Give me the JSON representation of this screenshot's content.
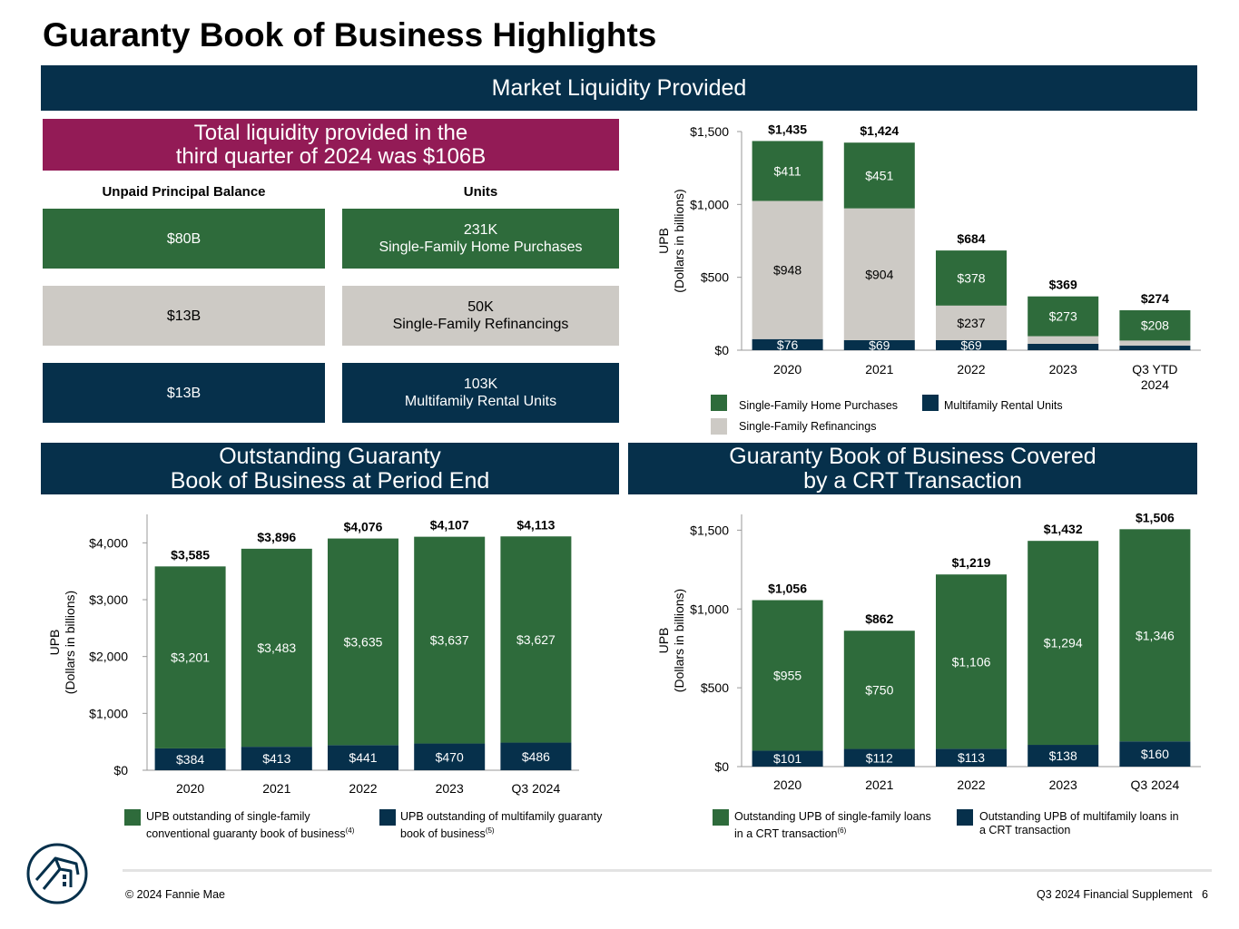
{
  "title": "Guaranty Book of Business Highlights",
  "liquidity_banner": "Market Liquidity Provided",
  "total_liquidity": {
    "line1": "Total liquidity provided in the",
    "line2": "third quarter of 2024 was $106B"
  },
  "columns": {
    "upb": "Unpaid Principal Balance",
    "units": "Units"
  },
  "tiles": [
    {
      "upb": "$80B",
      "units_value": "231K",
      "units_label": "Single-Family Home Purchases"
    },
    {
      "upb": "$13B",
      "units_value": "50K",
      "units_label": "Single-Family Refinancings"
    },
    {
      "upb": "$13B",
      "units_value": "103K",
      "units_label": "Multifamily Rental Units"
    }
  ],
  "outstanding_banner": {
    "line1": "Outstanding Guaranty",
    "line2": "Book of Business at Period End"
  },
  "crt_banner": {
    "line1": "Guaranty Book of Business Covered",
    "line2": "by a CRT Transaction"
  },
  "colors": {
    "navy": "#06304b",
    "green": "#2e6b3b",
    "gray": "#cdcac5",
    "magenta": "#931b56"
  },
  "logo_icon": "fannie-mae-house-logo",
  "footer": {
    "copyright": "© 2024 Fannie Mae",
    "supplement": "Q3 2024 Financial Supplement",
    "page": "6"
  },
  "legends": {
    "liquidity": [
      {
        "name": "Single-Family Home Purchases",
        "color": "#2e6b3b"
      },
      {
        "name": "Multifamily Rental Units",
        "color": "#06304b"
      },
      {
        "name": "Single-Family Refinancings",
        "color": "#cdcac5"
      }
    ],
    "outstanding": [
      {
        "line1": "UPB outstanding of single-family",
        "line2": "conventional guaranty book of business",
        "note": "(4)",
        "color": "#2e6b3b"
      },
      {
        "line1": "UPB outstanding of multifamily guaranty",
        "line2": "book of business",
        "note": "(5)",
        "color": "#06304b"
      }
    ],
    "crt": [
      {
        "line1": "Outstanding UPB of single-family loans",
        "line2": "in a CRT transaction",
        "note": "(6)",
        "color": "#2e6b3b"
      },
      {
        "line1": "Outstanding UPB of multifamily loans in",
        "line2": "a CRT transaction",
        "note": "",
        "color": "#06304b"
      }
    ]
  },
  "chart_data": [
    {
      "id": "liquidity",
      "type": "bar",
      "stacked": true,
      "ylabel": "UPB",
      "ylabel2": "(Dollars in billions)",
      "ylim": [
        0,
        1500
      ],
      "yticks": [
        0,
        500,
        1000,
        1500
      ],
      "ytick_labels": [
        "$0",
        "$500",
        "$1,000",
        "$1,500"
      ],
      "categories": [
        [
          "2020"
        ],
        [
          "2021"
        ],
        [
          "2022"
        ],
        [
          "2023"
        ],
        [
          "Q3 YTD",
          "2024"
        ]
      ],
      "series": [
        {
          "name": "Multifamily Rental Units",
          "values": [
            76,
            69,
            69,
            44,
            31
          ],
          "labels": [
            "$76",
            "$69",
            "$69",
            "",
            ""
          ],
          "color": "#06304b",
          "label_color": "#ffffff"
        },
        {
          "name": "Single-Family Refinancings",
          "values": [
            948,
            904,
            237,
            52,
            35
          ],
          "labels": [
            "$948",
            "$904",
            "$237",
            "",
            ""
          ],
          "color": "#cdcac5",
          "label_color": "#000000"
        },
        {
          "name": "Single-Family Home Purchases",
          "values": [
            411,
            451,
            378,
            273,
            208
          ],
          "labels": [
            "$411",
            "$451",
            "$378",
            "$273",
            "$208"
          ],
          "color": "#2e6b3b",
          "label_color": "#ffffff"
        }
      ],
      "totals": [
        1435,
        1424,
        684,
        369,
        274
      ],
      "total_labels": [
        "$1,435",
        "$1,424",
        "$684",
        "$369",
        "$274"
      ]
    },
    {
      "id": "outstanding",
      "type": "bar",
      "stacked": true,
      "ylabel": "UPB",
      "ylabel2": "(Dollars in billions)",
      "ylim": [
        0,
        4500
      ],
      "yticks": [
        0,
        1000,
        2000,
        3000,
        4000
      ],
      "ytick_labels": [
        "$0",
        "$1,000",
        "$2,000",
        "$3,000",
        "$4,000"
      ],
      "categories": [
        [
          "2020"
        ],
        [
          "2021"
        ],
        [
          "2022"
        ],
        [
          "2023"
        ],
        [
          "Q3 2024"
        ]
      ],
      "series": [
        {
          "name": "UPB outstanding of multifamily guaranty book of business",
          "values": [
            384,
            413,
            441,
            470,
            486
          ],
          "labels": [
            "$384",
            "$413",
            "$441",
            "$470",
            "$486"
          ],
          "color": "#06304b",
          "label_color": "#ffffff"
        },
        {
          "name": "UPB outstanding of single-family conventional guaranty book of business",
          "values": [
            3201,
            3483,
            3635,
            3637,
            3627
          ],
          "labels": [
            "$3,201",
            "$3,483",
            "$3,635",
            "$3,637",
            "$3,627"
          ],
          "color": "#2e6b3b",
          "label_color": "#ffffff"
        }
      ],
      "totals": [
        3585,
        3896,
        4076,
        4107,
        4113
      ],
      "total_labels": [
        "$3,585",
        "$3,896",
        "$4,076",
        "$4,107",
        "$4,113"
      ]
    },
    {
      "id": "crt",
      "type": "bar",
      "stacked": true,
      "ylabel": "UPB",
      "ylabel2": "(Dollars in billions)",
      "ylim": [
        0,
        1600
      ],
      "yticks": [
        0,
        500,
        1000,
        1500
      ],
      "ytick_labels": [
        "$0",
        "$500",
        "$1,000",
        "$1,500"
      ],
      "categories": [
        [
          "2020"
        ],
        [
          "2021"
        ],
        [
          "2022"
        ],
        [
          "2023"
        ],
        [
          "Q3 2024"
        ]
      ],
      "series": [
        {
          "name": "Outstanding UPB of multifamily loans in a CRT transaction",
          "values": [
            101,
            112,
            113,
            138,
            160
          ],
          "labels": [
            "$101",
            "$112",
            "$113",
            "$138",
            "$160"
          ],
          "color": "#06304b",
          "label_color": "#ffffff"
        },
        {
          "name": "Outstanding UPB of single-family loans in a CRT transaction",
          "values": [
            955,
            750,
            1106,
            1294,
            1346
          ],
          "labels": [
            "$955",
            "$750",
            "$1,106",
            "$1,294",
            "$1,346"
          ],
          "color": "#2e6b3b",
          "label_color": "#ffffff"
        }
      ],
      "totals": [
        1056,
        862,
        1219,
        1432,
        1506
      ],
      "total_labels": [
        "$1,056",
        "$862",
        "$1,219",
        "$1,432",
        "$1,506"
      ]
    }
  ]
}
